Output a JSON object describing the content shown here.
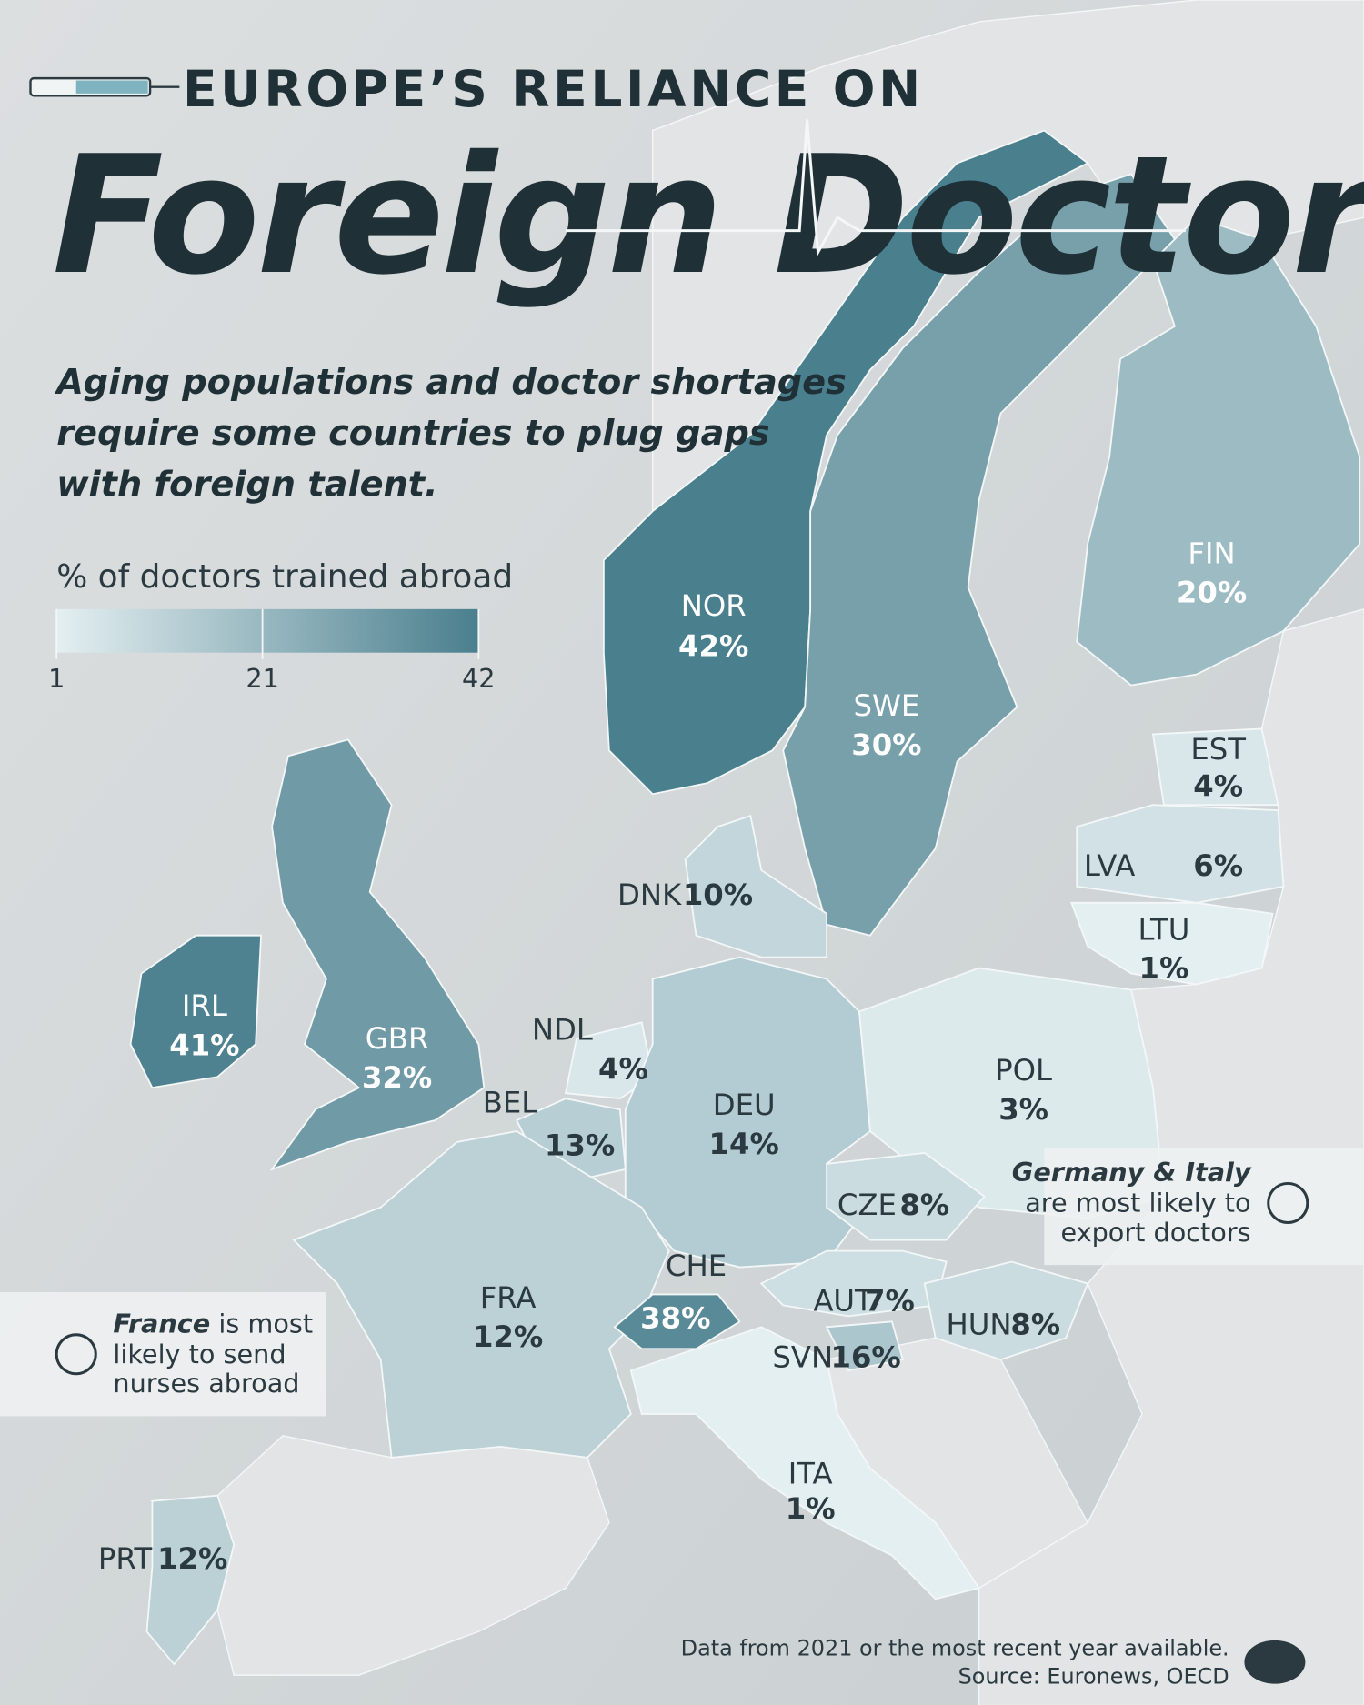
{
  "header": {
    "kicker": "EUROPE’S RELIANCE ON",
    "title": "Foreign Doctors",
    "subtitle": [
      "Aging populations and doctor shortages",
      "require some countries to plug gaps",
      "with foreign talent."
    ]
  },
  "legend": {
    "title": "% of doctors trained abroad",
    "lim": [
      1,
      42
    ],
    "ticks": [
      1,
      21,
      42
    ],
    "colors": [
      "#e4eff1",
      "#4a7f8e"
    ]
  },
  "countries": [
    {
      "code": "NOR",
      "value": 42,
      "value_label": "42%"
    },
    {
      "code": "SWE",
      "value": 30,
      "value_label": "30%"
    },
    {
      "code": "FIN",
      "value": 20,
      "value_label": "20%"
    },
    {
      "code": "EST",
      "value": 4,
      "value_label": "4%"
    },
    {
      "code": "LVA",
      "value": 6,
      "value_label": "6%"
    },
    {
      "code": "LTU",
      "value": 1,
      "value_label": "1%"
    },
    {
      "code": "DNK",
      "value": 10,
      "value_label": "10%"
    },
    {
      "code": "IRL",
      "value": 41,
      "value_label": "41%"
    },
    {
      "code": "GBR",
      "value": 32,
      "value_label": "32%"
    },
    {
      "code": "NDL",
      "value": 4,
      "value_label": "4%"
    },
    {
      "code": "BEL",
      "value": 13,
      "value_label": "13%"
    },
    {
      "code": "DEU",
      "value": 14,
      "value_label": "14%"
    },
    {
      "code": "POL",
      "value": 3,
      "value_label": "3%"
    },
    {
      "code": "CZE",
      "value": 8,
      "value_label": "8%"
    },
    {
      "code": "CHE",
      "value": 38,
      "value_label": "38%"
    },
    {
      "code": "AUT",
      "value": 7,
      "value_label": "7%"
    },
    {
      "code": "HUN",
      "value": 8,
      "value_label": "8%"
    },
    {
      "code": "SVN",
      "value": 16,
      "value_label": "16%"
    },
    {
      "code": "FRA",
      "value": 12,
      "value_label": "12%"
    },
    {
      "code": "ITA",
      "value": 1,
      "value_label": "1%"
    },
    {
      "code": "PRT",
      "value": 12,
      "value_label": "12%"
    }
  ],
  "callouts": [
    {
      "bold": "Germany & Italy",
      "lines": [
        "are most likely to",
        "export doctors"
      ]
    },
    {
      "bold": "France",
      "lines": [
        "is most",
        "likely to send",
        "nurses abroad"
      ]
    }
  ],
  "footer": {
    "note": "Data from 2021 or the most recent year available.",
    "source": "Source: Euronews, OECD"
  }
}
